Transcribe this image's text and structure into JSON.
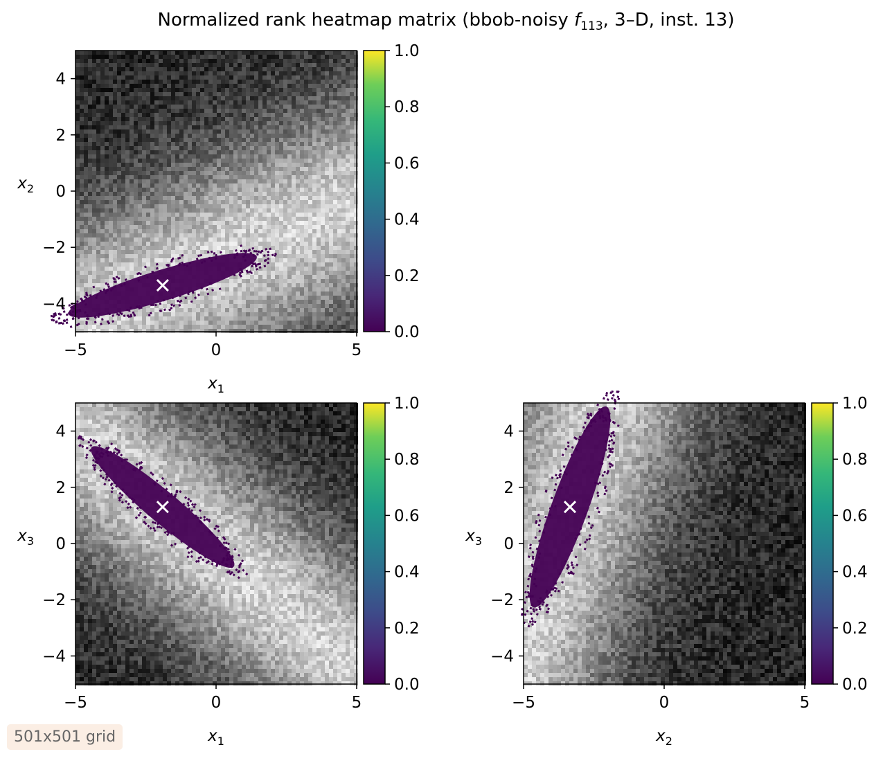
{
  "figure": {
    "title_prefix": "Normalized rank heatmap matrix (bbob-noisy ",
    "title_fn": "f",
    "title_sub": "113",
    "title_suffix": ", 3–D, inst. 13)",
    "badge": "501x501 grid"
  },
  "chart_data": [
    {
      "type": "heatmap",
      "panel": "x1-x2",
      "xlabel": "x",
      "xlabel_sub": "1",
      "ylabel": "x",
      "ylabel_sub": "2",
      "xlim": [
        -5,
        5
      ],
      "ylim": [
        -5,
        5
      ],
      "xticks": [
        -5,
        0,
        5
      ],
      "yticks": [
        -4,
        -2,
        0,
        2,
        4
      ],
      "colorbar": {
        "colormap": "viridis",
        "range": [
          0,
          1
        ],
        "ticks": [
          0.0,
          0.2,
          0.4,
          0.6,
          0.8,
          1.0
        ]
      },
      "background": "grayscale noisy rank field",
      "optimum_marker": {
        "x": -1.9,
        "y": -3.35,
        "symbol": "x",
        "color": "#ffffff"
      },
      "best_region": {
        "center": [
          -1.9,
          -3.35
        ],
        "angle_deg": 17,
        "half_length": 3.5,
        "half_width": 0.55
      },
      "light_band": {
        "center": [
          -1.9,
          -3.35
        ],
        "angle_deg": 24,
        "half_width": 2.5
      }
    },
    {
      "type": "heatmap",
      "panel": "x1-x3",
      "xlabel": "x",
      "xlabel_sub": "1",
      "ylabel": "x",
      "ylabel_sub": "3",
      "xlim": [
        -5,
        5
      ],
      "ylim": [
        -5,
        5
      ],
      "xticks": [
        -5,
        0,
        5
      ],
      "yticks": [
        -4,
        -2,
        0,
        2,
        4
      ],
      "colorbar": {
        "colormap": "viridis",
        "range": [
          0,
          1
        ],
        "ticks": [
          0.0,
          0.2,
          0.4,
          0.6,
          0.8,
          1.0
        ]
      },
      "background": "grayscale noisy rank field",
      "optimum_marker": {
        "x": -1.9,
        "y": 1.3,
        "symbol": "x",
        "color": "#ffffff"
      },
      "best_region": {
        "center": [
          -1.9,
          1.3
        ],
        "angle_deg": -40,
        "half_length": 3.3,
        "half_width": 0.55
      },
      "light_band": {
        "center": [
          -1.9,
          1.3
        ],
        "angle_deg": -40,
        "half_width": 2.2
      }
    },
    {
      "type": "heatmap",
      "panel": "x2-x3",
      "xlabel": "x",
      "xlabel_sub": "2",
      "ylabel": "x",
      "ylabel_sub": "3",
      "xlim": [
        -5,
        5
      ],
      "ylim": [
        -5,
        5
      ],
      "xticks": [
        -5,
        0,
        5
      ],
      "yticks": [
        -4,
        -2,
        0,
        2,
        4
      ],
      "colorbar": {
        "colormap": "viridis",
        "range": [
          0,
          1
        ],
        "ticks": [
          0.0,
          0.2,
          0.4,
          0.6,
          0.8,
          1.0
        ]
      },
      "background": "grayscale noisy rank field",
      "optimum_marker": {
        "x": -3.35,
        "y": 1.3,
        "symbol": "x",
        "color": "#ffffff"
      },
      "best_region": {
        "center": [
          -3.35,
          1.3
        ],
        "angle_deg": 70,
        "half_length": 3.8,
        "half_width": 0.65
      },
      "light_band": {
        "center": [
          -3.35,
          1.3
        ],
        "angle_deg": 72,
        "half_width": 2.3
      }
    }
  ]
}
